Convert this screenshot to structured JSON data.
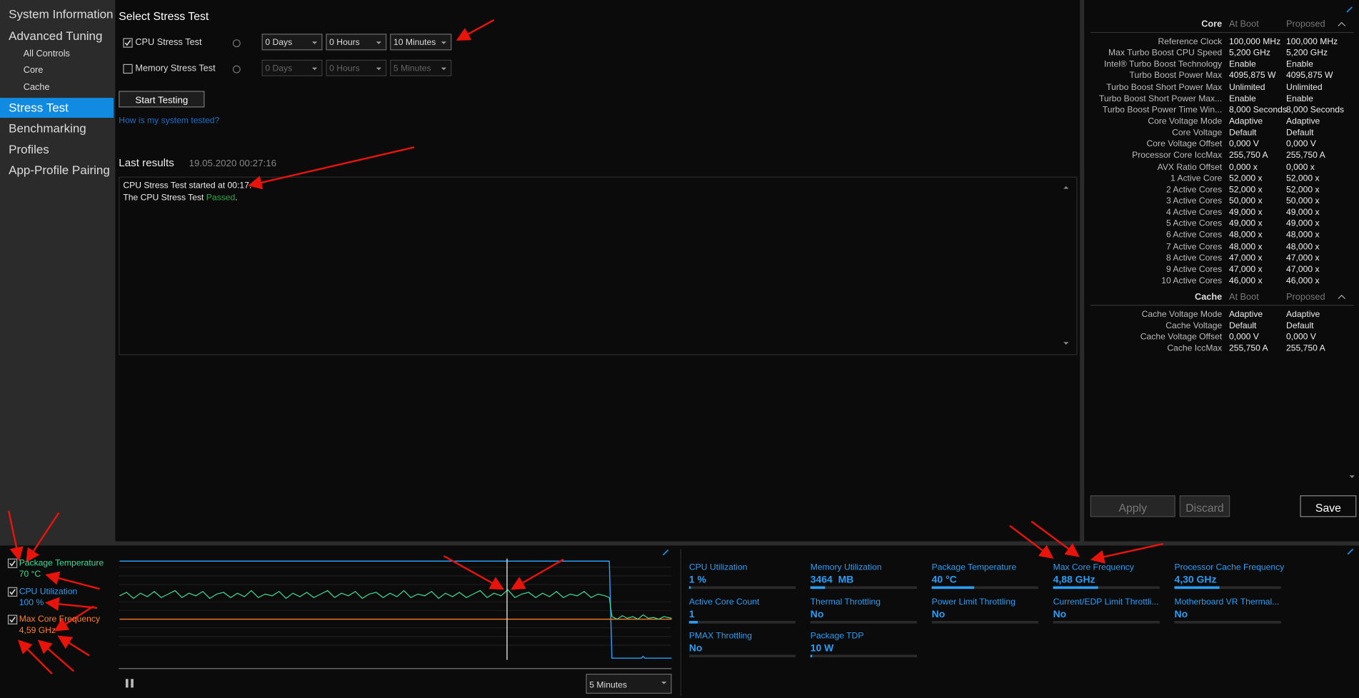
{
  "sidebar": {
    "items": [
      "System Information",
      "Advanced Tuning",
      "All Controls",
      "Core",
      "Cache",
      "Stress Test",
      "Benchmarking",
      "Profiles",
      "App-Profile Pairing"
    ]
  },
  "stress": {
    "title": "Select Stress Test",
    "tests": [
      {
        "label": "CPU Stress Test",
        "days": "0 Days",
        "hours": "0 Hours",
        "minutes": "10 Minutes"
      },
      {
        "label": "Memory Stress Test",
        "days": "0 Days",
        "hours": "0 Hours",
        "minutes": "5 Minutes"
      }
    ],
    "start": "Start Testing",
    "link": "How is my system tested?",
    "last_results": "Last results",
    "timestamp": "19.05.2020 00:27:16",
    "log": {
      "line1": "CPU Stress Test started at 00:17.",
      "line2": "The CPU Stress Test",
      "status": "Passed",
      "end": "."
    }
  },
  "settings": {
    "core_header": [
      "Core",
      "At Boot",
      "Proposed"
    ],
    "core_rows": [
      [
        "Reference Clock",
        "100,000 MHz",
        "100,000 MHz"
      ],
      [
        "Max Turbo Boost CPU Speed",
        "5,200 GHz",
        "5,200 GHz"
      ],
      [
        "Intel® Turbo Boost Technology",
        "Enable",
        "Enable"
      ],
      [
        "Turbo Boost Power Max",
        "4095,875 W",
        "4095,875 W"
      ],
      [
        "Turbo Boost Short Power Max",
        "Unlimited",
        "Unlimited"
      ],
      [
        "Turbo Boost Short Power Max...",
        "Enable",
        "Enable"
      ],
      [
        "Turbo Boost Power Time Win...",
        "8,000 Seconds",
        "8,000 Seconds"
      ],
      [
        "Core Voltage Mode",
        "Adaptive",
        "Adaptive"
      ],
      [
        "Core Voltage",
        "Default",
        "Default"
      ],
      [
        "Core Voltage Offset",
        "0,000 V",
        "0,000 V"
      ],
      [
        "Processor Core IccMax",
        "255,750 A",
        "255,750 A"
      ],
      [
        "AVX Ratio Offset",
        "0,000 x",
        "0,000 x"
      ],
      [
        "1 Active Core",
        "52,000 x",
        "52,000 x"
      ],
      [
        "2 Active Cores",
        "52,000 x",
        "52,000 x"
      ],
      [
        "3 Active Cores",
        "50,000 x",
        "50,000 x"
      ],
      [
        "4 Active Cores",
        "49,000 x",
        "49,000 x"
      ],
      [
        "5 Active Cores",
        "49,000 x",
        "49,000 x"
      ],
      [
        "6 Active Cores",
        "48,000 x",
        "48,000 x"
      ],
      [
        "7 Active Cores",
        "48,000 x",
        "48,000 x"
      ],
      [
        "8 Active Cores",
        "47,000 x",
        "47,000 x"
      ],
      [
        "9 Active Cores",
        "47,000 x",
        "47,000 x"
      ],
      [
        "10 Active Cores",
        "46,000 x",
        "46,000 x"
      ]
    ],
    "cache_header": [
      "Cache",
      "At Boot",
      "Proposed"
    ],
    "cache_rows": [
      [
        "Cache Voltage Mode",
        "Adaptive",
        "Adaptive"
      ],
      [
        "Cache Voltage",
        "Default",
        "Default"
      ],
      [
        "Cache Voltage Offset",
        "0,000 V",
        "0,000 V"
      ],
      [
        "Cache IccMax",
        "255,750 A",
        "255,750 A"
      ]
    ],
    "buttons": [
      "Apply",
      "Discard",
      "Save"
    ]
  },
  "monitor": {
    "legend": [
      {
        "label": "Package Temperature",
        "value": "70 °C"
      },
      {
        "label": "CPU Utilization",
        "value": "100 %"
      },
      {
        "label": "Max Core Frequency",
        "value": "4,59 GHz"
      }
    ],
    "range": "5 Minutes",
    "tiles": [
      {
        "label": "CPU Utilization",
        "value": "1 %"
      },
      {
        "label": "Memory Utilization",
        "value": "3464  MB"
      },
      {
        "label": "Package Temperature",
        "value": "40 °C"
      },
      {
        "label": "Max Core Frequency",
        "value": "4,88 GHz"
      },
      {
        "label": "Processor Cache Frequency",
        "value": "4,30 GHz"
      },
      {
        "label": "Active Core Count",
        "value": "1"
      },
      {
        "label": "Thermal Throttling",
        "value": "No"
      },
      {
        "label": "Power Limit Throttling",
        "value": "No"
      },
      {
        "label": "Current/EDP Limit Throttli...",
        "value": "No"
      },
      {
        "label": "Motherboard VR Thermal...",
        "value": "No"
      },
      {
        "label": "PMAX Throttling",
        "value": "No"
      },
      {
        "label": "Package TDP",
        "value": "10 W"
      }
    ]
  }
}
